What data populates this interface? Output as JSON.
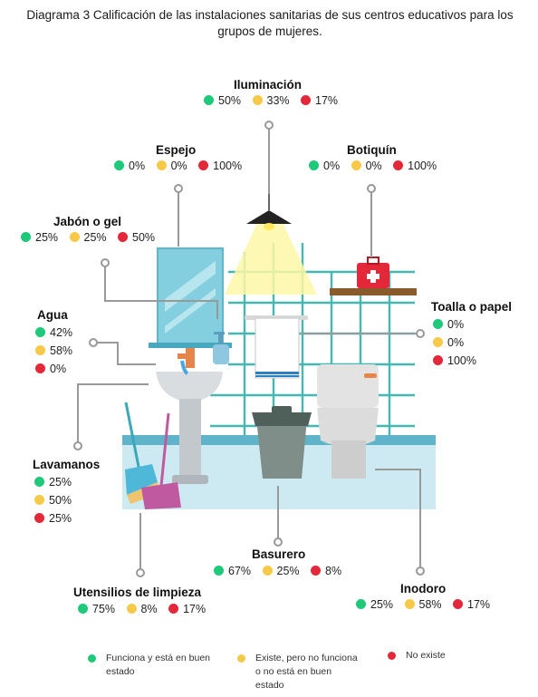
{
  "title": "Diagrama 3 Calificación de las instalaciones sanitarias de sus centros educativos para los grupos de mujeres.",
  "colors": {
    "green": "#1ec97a",
    "yellow": "#f7c948",
    "red": "#e3283a"
  },
  "items": [
    {
      "label": "Iluminación",
      "green": "50%",
      "yellow": "33%",
      "red": "17%"
    },
    {
      "label": "Espejo",
      "green": "0%",
      "yellow": "0%",
      "red": "100%"
    },
    {
      "label": "Botiquín",
      "green": "0%",
      "yellow": "0%",
      "red": "100%"
    },
    {
      "label": "Jabón o gel",
      "green": "25%",
      "yellow": "25%",
      "red": "50%"
    },
    {
      "label": "Agua",
      "green": "42%",
      "yellow": "58%",
      "red": "0%"
    },
    {
      "label": "Toalla o papel",
      "green": "0%",
      "yellow": "0%",
      "red": "100%"
    },
    {
      "label": "Lavamanos",
      "green": "25%",
      "yellow": "50%",
      "red": "25%"
    },
    {
      "label": "Basurero",
      "green": "67%",
      "yellow": "25%",
      "red": "8%"
    },
    {
      "label": "Inodoro",
      "green": "25%",
      "yellow": "58%",
      "red": "17%"
    },
    {
      "label": "Utensilios de limpieza",
      "green": "75%",
      "yellow": "8%",
      "red": "17%"
    }
  ],
  "legend": [
    {
      "color": "green",
      "text": "Funciona y está en buen estado"
    },
    {
      "color": "yellow",
      "text": "Existe, pero no funciona o no está en buen estado"
    },
    {
      "color": "red",
      "text": "No existe"
    }
  ]
}
